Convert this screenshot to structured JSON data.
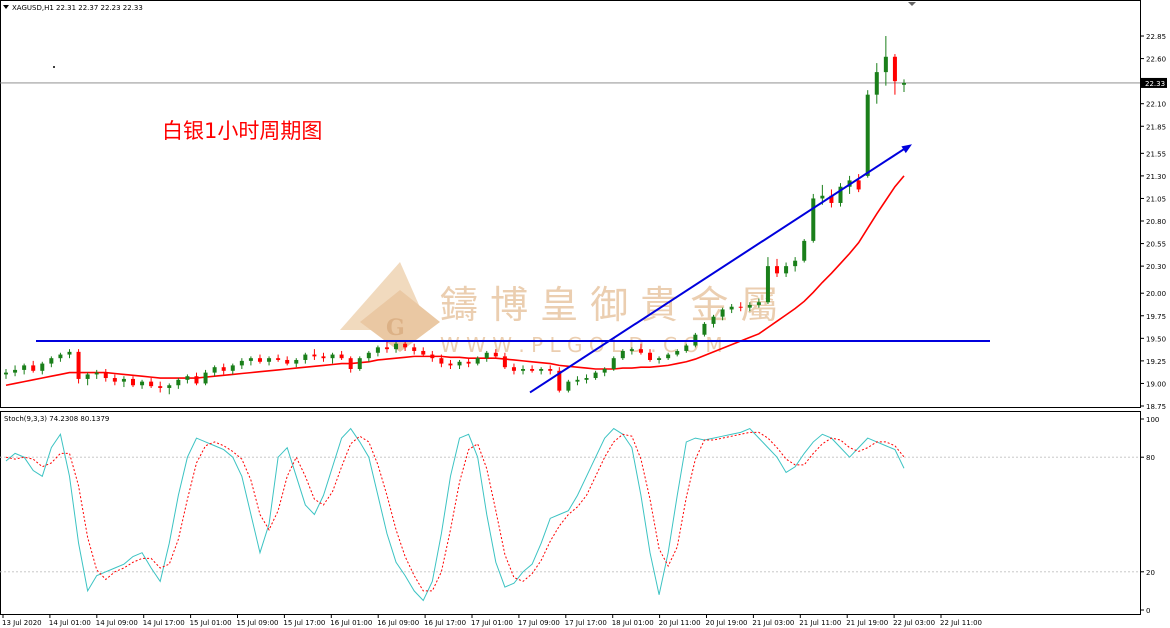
{
  "header": {
    "symbol_info": "XAGUSD,H1  22.31 22.37 22.23 22.33",
    "indicator_info": "Stoch(9,3,3) 74.2308 80.1379"
  },
  "annotation": {
    "title": "白银1小时周期图"
  },
  "watermark": {
    "cn": "鑄 博 皇 御 貴 金 屬",
    "url": "W W W . P L G O L D . C O M"
  },
  "colors": {
    "bull": "#1a7f1a",
    "bear": "#ff0000",
    "ma": "#ff0000",
    "trendline": "#0000dd",
    "stoch_main": "#3cc3c3",
    "stoch_signal": "#ff0000",
    "grid_dots": "#c0c0c0"
  },
  "chart_data": [
    {
      "type": "candlestick",
      "symbol": "XAGUSD",
      "timeframe": "H1",
      "ylim": [
        18.75,
        22.95
      ],
      "y_ticks": [
        "22.85",
        "22.60",
        "22.33",
        "22.10",
        "21.85",
        "21.55",
        "21.30",
        "21.05",
        "20.80",
        "20.55",
        "20.30",
        "20.00",
        "19.75",
        "19.50",
        "19.25",
        "19.00",
        "18.75"
      ],
      "current_price": "22.33",
      "x_labels": [
        "13 Jul 2020",
        "14 Jul 01:00",
        "14 Jul 09:00",
        "14 Jul 17:00",
        "15 Jul 01:00",
        "15 Jul 09:00",
        "15 Jul 17:00",
        "16 Jul 01:00",
        "16 Jul 09:00",
        "16 Jul 17:00",
        "17 Jul 01:00",
        "17 Jul 09:00",
        "17 Jul 17:00",
        "18 Jul 01:00",
        "20 Jul 11:00",
        "20 Jul 19:00",
        "21 Jul 03:00",
        "21 Jul 11:00",
        "21 Jul 19:00",
        "22 Jul 03:00",
        "22 Jul 11:00"
      ],
      "ohlc": [
        [
          19.1,
          19.16,
          19.05,
          19.12
        ],
        [
          19.12,
          19.2,
          19.08,
          19.15
        ],
        [
          19.15,
          19.22,
          19.1,
          19.2
        ],
        [
          19.2,
          19.25,
          19.12,
          19.14
        ],
        [
          19.14,
          19.24,
          19.1,
          19.22
        ],
        [
          19.22,
          19.3,
          19.18,
          19.28
        ],
        [
          19.28,
          19.34,
          19.24,
          19.32
        ],
        [
          19.32,
          19.38,
          19.28,
          19.35
        ],
        [
          19.35,
          19.38,
          19.0,
          19.05
        ],
        [
          19.05,
          19.12,
          18.98,
          19.1
        ],
        [
          19.1,
          19.15,
          19.05,
          19.12
        ],
        [
          19.12,
          19.16,
          19.02,
          19.06
        ],
        [
          19.06,
          19.1,
          18.98,
          19.02
        ],
        [
          19.02,
          19.08,
          18.96,
          19.05
        ],
        [
          19.05,
          19.08,
          18.96,
          18.98
        ],
        [
          18.98,
          19.04,
          18.94,
          19.02
        ],
        [
          19.02,
          19.06,
          18.95,
          18.97
        ],
        [
          18.97,
          19.02,
          18.9,
          18.95
        ],
        [
          18.95,
          19.0,
          18.88,
          18.98
        ],
        [
          18.98,
          19.06,
          18.94,
          19.04
        ],
        [
          19.04,
          19.1,
          19.0,
          19.08
        ],
        [
          19.08,
          19.12,
          18.98,
          19.0
        ],
        [
          19.0,
          19.15,
          18.98,
          19.12
        ],
        [
          19.12,
          19.2,
          19.08,
          19.18
        ],
        [
          19.18,
          19.22,
          19.1,
          19.14
        ],
        [
          19.14,
          19.22,
          19.1,
          19.2
        ],
        [
          19.2,
          19.28,
          19.16,
          19.25
        ],
        [
          19.25,
          19.3,
          19.2,
          19.28
        ],
        [
          19.28,
          19.32,
          19.22,
          19.24
        ],
        [
          19.24,
          19.3,
          19.2,
          19.28
        ],
        [
          19.28,
          19.32,
          19.24,
          19.26
        ],
        [
          19.26,
          19.3,
          19.2,
          19.22
        ],
        [
          19.22,
          19.28,
          19.18,
          19.26
        ],
        [
          19.26,
          19.34,
          19.22,
          19.32
        ],
        [
          19.32,
          19.38,
          19.26,
          19.3
        ],
        [
          19.3,
          19.34,
          19.24,
          19.28
        ],
        [
          19.28,
          19.34,
          19.22,
          19.32
        ],
        [
          19.32,
          19.36,
          19.26,
          19.28
        ],
        [
          19.28,
          19.3,
          19.12,
          19.16
        ],
        [
          19.16,
          19.3,
          19.14,
          19.28
        ],
        [
          19.28,
          19.36,
          19.24,
          19.34
        ],
        [
          19.34,
          19.42,
          19.3,
          19.4
        ],
        [
          19.4,
          19.46,
          19.34,
          19.38
        ],
        [
          19.38,
          19.46,
          19.34,
          19.44
        ],
        [
          19.44,
          19.48,
          19.36,
          19.4
        ],
        [
          19.4,
          19.44,
          19.32,
          19.36
        ],
        [
          19.36,
          19.4,
          19.3,
          19.32
        ],
        [
          19.32,
          19.36,
          19.24,
          19.28
        ],
        [
          19.28,
          19.32,
          19.18,
          19.22
        ],
        [
          19.22,
          19.26,
          19.16,
          19.2
        ],
        [
          19.2,
          19.26,
          19.16,
          19.24
        ],
        [
          19.24,
          19.28,
          19.18,
          19.22
        ],
        [
          19.22,
          19.3,
          19.2,
          19.28
        ],
        [
          19.28,
          19.36,
          19.24,
          19.34
        ],
        [
          19.34,
          19.38,
          19.28,
          19.3
        ],
        [
          19.3,
          19.34,
          19.16,
          19.18
        ],
        [
          19.18,
          19.22,
          19.1,
          19.14
        ],
        [
          19.14,
          19.2,
          19.1,
          19.16
        ],
        [
          19.16,
          19.2,
          19.12,
          19.14
        ],
        [
          19.14,
          19.18,
          19.1,
          19.16
        ],
        [
          19.16,
          19.2,
          19.1,
          19.14
        ],
        [
          19.14,
          19.18,
          18.9,
          18.92
        ],
        [
          18.92,
          19.04,
          18.9,
          19.02
        ],
        [
          19.02,
          19.08,
          18.98,
          19.04
        ],
        [
          19.04,
          19.1,
          19.0,
          19.06
        ],
        [
          19.06,
          19.14,
          19.04,
          19.12
        ],
        [
          19.12,
          19.18,
          19.08,
          19.16
        ],
        [
          19.16,
          19.3,
          19.14,
          19.28
        ],
        [
          19.28,
          19.38,
          19.26,
          19.36
        ],
        [
          19.36,
          19.4,
          19.32,
          19.38
        ],
        [
          19.38,
          19.44,
          19.32,
          19.34
        ],
        [
          19.34,
          19.38,
          19.24,
          19.26
        ],
        [
          19.26,
          19.3,
          19.22,
          19.28
        ],
        [
          19.28,
          19.34,
          19.26,
          19.32
        ],
        [
          19.32,
          19.38,
          19.3,
          19.36
        ],
        [
          19.36,
          19.44,
          19.34,
          19.42
        ],
        [
          19.42,
          19.56,
          19.4,
          19.54
        ],
        [
          19.54,
          19.68,
          19.52,
          19.66
        ],
        [
          19.66,
          19.76,
          19.62,
          19.74
        ],
        [
          19.74,
          19.84,
          19.7,
          19.82
        ],
        [
          19.82,
          19.88,
          19.78,
          19.85
        ],
        [
          19.85,
          19.9,
          19.8,
          19.84
        ],
        [
          19.84,
          19.9,
          19.8,
          19.87
        ],
        [
          19.87,
          19.94,
          19.84,
          19.9
        ],
        [
          19.9,
          20.4,
          19.88,
          20.3
        ],
        [
          20.3,
          20.38,
          20.18,
          20.22
        ],
        [
          20.22,
          20.34,
          20.18,
          20.3
        ],
        [
          20.3,
          20.4,
          20.24,
          20.36
        ],
        [
          20.36,
          20.6,
          20.34,
          20.58
        ],
        [
          20.58,
          21.1,
          20.56,
          21.05
        ],
        [
          21.05,
          21.2,
          20.98,
          21.08
        ],
        [
          21.08,
          21.15,
          20.95,
          21.0
        ],
        [
          21.0,
          21.22,
          20.96,
          21.18
        ],
        [
          21.18,
          21.3,
          21.1,
          21.25
        ],
        [
          21.25,
          21.32,
          21.12,
          21.15
        ],
        [
          21.3,
          22.25,
          21.28,
          22.2
        ],
        [
          22.2,
          22.55,
          22.1,
          22.45
        ],
        [
          22.45,
          22.85,
          22.3,
          22.62
        ],
        [
          22.62,
          22.65,
          22.2,
          22.35
        ],
        [
          22.31,
          22.37,
          22.23,
          22.33
        ]
      ],
      "moving_average": [
        18.98,
        19.0,
        19.02,
        19.04,
        19.06,
        19.08,
        19.1,
        19.12,
        19.12,
        19.12,
        19.12,
        19.12,
        19.11,
        19.1,
        19.09,
        19.08,
        19.07,
        19.06,
        19.06,
        19.06,
        19.06,
        19.06,
        19.07,
        19.08,
        19.09,
        19.1,
        19.11,
        19.12,
        19.13,
        19.14,
        19.15,
        19.16,
        19.17,
        19.18,
        19.19,
        19.2,
        19.21,
        19.22,
        19.22,
        19.23,
        19.24,
        19.26,
        19.27,
        19.28,
        19.29,
        19.3,
        19.3,
        19.3,
        19.3,
        19.29,
        19.29,
        19.28,
        19.28,
        19.28,
        19.28,
        19.27,
        19.26,
        19.25,
        19.24,
        19.23,
        19.22,
        19.2,
        19.19,
        19.18,
        19.17,
        19.16,
        19.16,
        19.16,
        19.17,
        19.17,
        19.18,
        19.18,
        19.19,
        19.2,
        19.22,
        19.24,
        19.27,
        19.31,
        19.35,
        19.39,
        19.43,
        19.47,
        19.51,
        19.55,
        19.62,
        19.69,
        19.76,
        19.83,
        19.91,
        20.01,
        20.12,
        20.22,
        20.33,
        20.44,
        20.56,
        20.72,
        20.88,
        21.03,
        21.18,
        21.3
      ],
      "horizontal_line": 19.47,
      "trendline": [
        [
          19,
          18.9
        ],
        [
          20,
          21.65
        ]
      ]
    },
    {
      "type": "line",
      "title": "Stoch(9,3,3) 74.2308 80.1379",
      "ylim": [
        0,
        100
      ],
      "y_ticks": [
        "100",
        "80",
        "20",
        "0"
      ],
      "levels": [
        80,
        20
      ],
      "main_ticks": [
        78,
        82,
        80,
        73,
        70,
        85,
        92,
        70,
        35,
        10,
        18,
        20,
        22,
        24,
        28,
        30,
        22,
        15,
        35,
        60,
        80,
        90,
        88,
        86,
        84,
        80,
        70,
        50,
        30,
        45,
        80,
        85,
        70,
        55,
        50,
        60,
        75,
        90,
        95,
        88,
        80,
        60,
        40,
        25,
        18,
        10,
        5,
        15,
        40,
        70,
        90,
        92,
        80,
        50,
        25,
        12,
        14,
        20,
        24,
        35,
        48,
        50,
        52,
        60,
        70,
        80,
        90,
        95,
        92,
        85,
        60,
        30,
        8,
        30,
        60,
        88,
        90,
        89,
        90,
        91,
        92,
        93,
        95,
        90,
        85,
        80,
        72,
        75,
        82,
        88,
        92,
        90,
        85,
        80,
        85,
        90,
        88,
        86,
        84,
        74.23
      ],
      "signal_ticks": [
        80,
        79,
        80,
        79,
        75,
        77,
        82,
        82,
        65,
        38,
        21,
        16,
        20,
        22,
        25,
        27,
        27,
        22,
        24,
        37,
        58,
        77,
        86,
        88,
        86,
        83,
        79,
        68,
        50,
        42,
        52,
        70,
        80,
        70,
        58,
        55,
        62,
        75,
        87,
        91,
        88,
        76,
        60,
        42,
        28,
        18,
        10,
        10,
        20,
        42,
        67,
        84,
        87,
        74,
        52,
        29,
        17,
        15,
        19,
        26,
        36,
        44,
        50,
        54,
        60,
        70,
        80,
        88,
        92,
        91,
        79,
        58,
        32,
        23,
        33,
        59,
        79,
        89,
        89,
        90,
        91,
        92,
        93,
        93,
        90,
        85,
        79,
        76,
        76,
        82,
        87,
        90,
        89,
        85,
        83,
        85,
        88,
        88,
        86,
        80.14
      ]
    }
  ]
}
